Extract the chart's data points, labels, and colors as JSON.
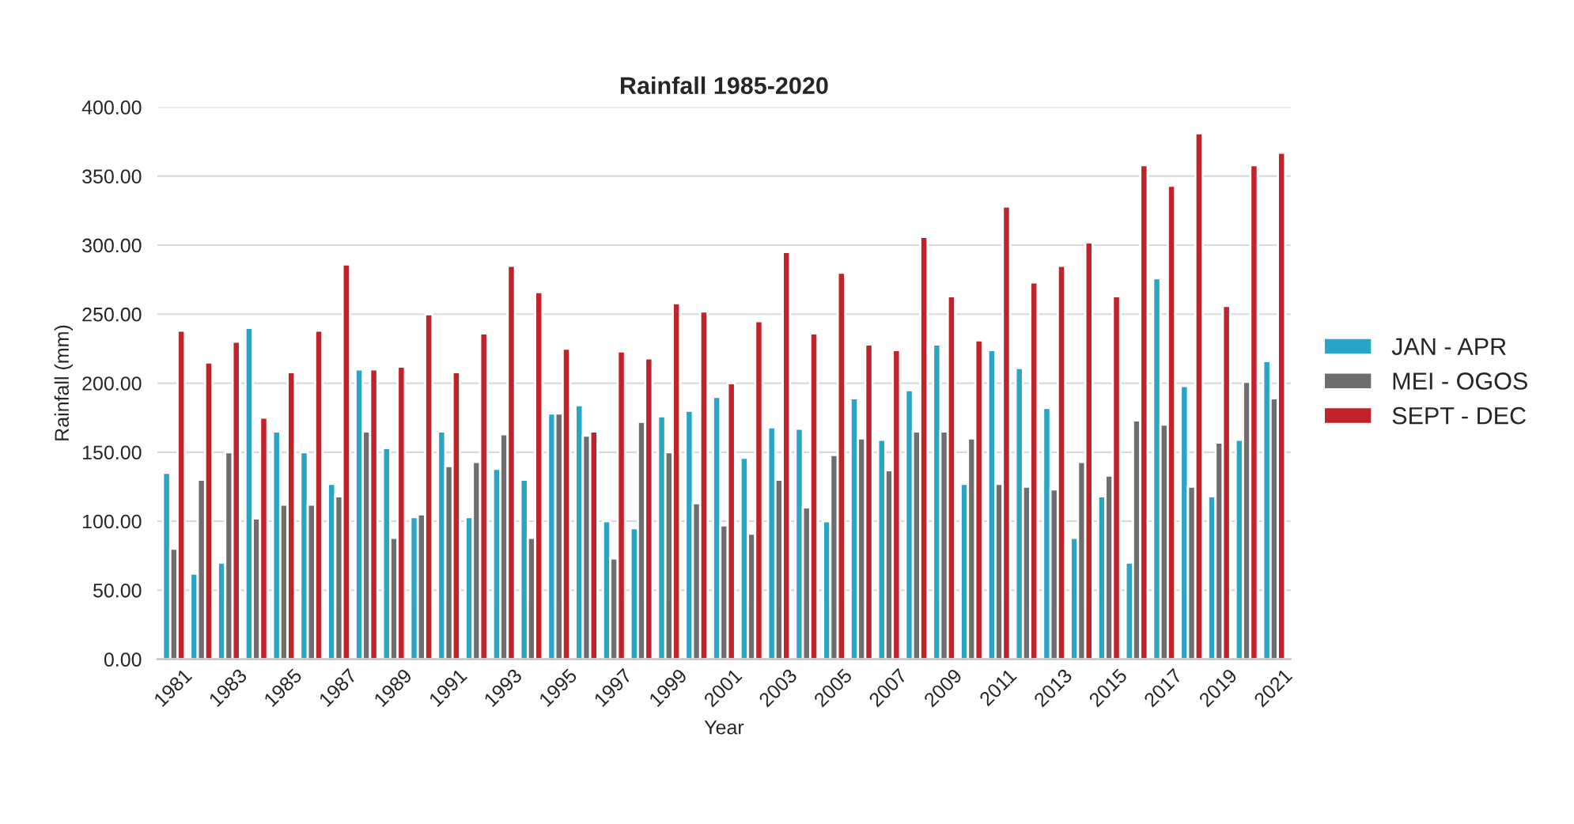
{
  "chart_data": {
    "type": "bar",
    "title": "Rainfall 1985-2020",
    "xlabel": "Year",
    "ylabel": "Rainfall (mm)",
    "categories": [
      "1981",
      null,
      "1983",
      null,
      "1985",
      null,
      "1987",
      null,
      "1989",
      null,
      "1991",
      null,
      "1993",
      null,
      "1995",
      null,
      "1997",
      null,
      "1999",
      null,
      "2001",
      null,
      "2003",
      null,
      "2005",
      null,
      "2007",
      null,
      "2009",
      null,
      "2011",
      null,
      "2013",
      null,
      "2015",
      null,
      "2017",
      null,
      "2019",
      null,
      "2021"
    ],
    "series": [
      {
        "name": "JAN - APR",
        "color": "#2aa5c8",
        "values": [
          135,
          62,
          70,
          240,
          165,
          150,
          127,
          210,
          153,
          103,
          165,
          103,
          138,
          130,
          178,
          184,
          100,
          95,
          176,
          180,
          190,
          146,
          168,
          167,
          100,
          189,
          159,
          195,
          228,
          127,
          224,
          211,
          182,
          88,
          118,
          70,
          276,
          198,
          118,
          159,
          216
        ]
      },
      {
        "name": "MEI - OGOS",
        "color": "#6e6e6e",
        "values": [
          80,
          130,
          150,
          102,
          112,
          112,
          118,
          165,
          88,
          105,
          140,
          143,
          163,
          88,
          178,
          162,
          73,
          172,
          150,
          113,
          97,
          91,
          130,
          110,
          148,
          160,
          137,
          165,
          165,
          160,
          127,
          125,
          123,
          143,
          133,
          173,
          170,
          125,
          157,
          201,
          189
        ]
      },
      {
        "name": "SEPT - DEC",
        "color": "#c0232a",
        "values": [
          238,
          215,
          230,
          175,
          208,
          238,
          286,
          210,
          212,
          250,
          208,
          236,
          285,
          266,
          225,
          165,
          223,
          218,
          258,
          252,
          200,
          245,
          295,
          236,
          280,
          228,
          224,
          306,
          263,
          231,
          328,
          273,
          285,
          302,
          263,
          358,
          343,
          381,
          256,
          358,
          367
        ]
      }
    ],
    "ylim": [
      0,
      400
    ],
    "yticks": [
      {
        "value": 0,
        "label": "0.00"
      },
      {
        "value": 50,
        "label": "50.00"
      },
      {
        "value": 100,
        "label": "100.00"
      },
      {
        "value": 150,
        "label": "150.00"
      },
      {
        "value": 200,
        "label": "200.00"
      },
      {
        "value": 250,
        "label": "250.00"
      },
      {
        "value": 300,
        "label": "300.00"
      },
      {
        "value": 350,
        "label": "350.00"
      },
      {
        "value": 400,
        "label": "400.00"
      }
    ],
    "grid": "y",
    "legend": "right"
  }
}
